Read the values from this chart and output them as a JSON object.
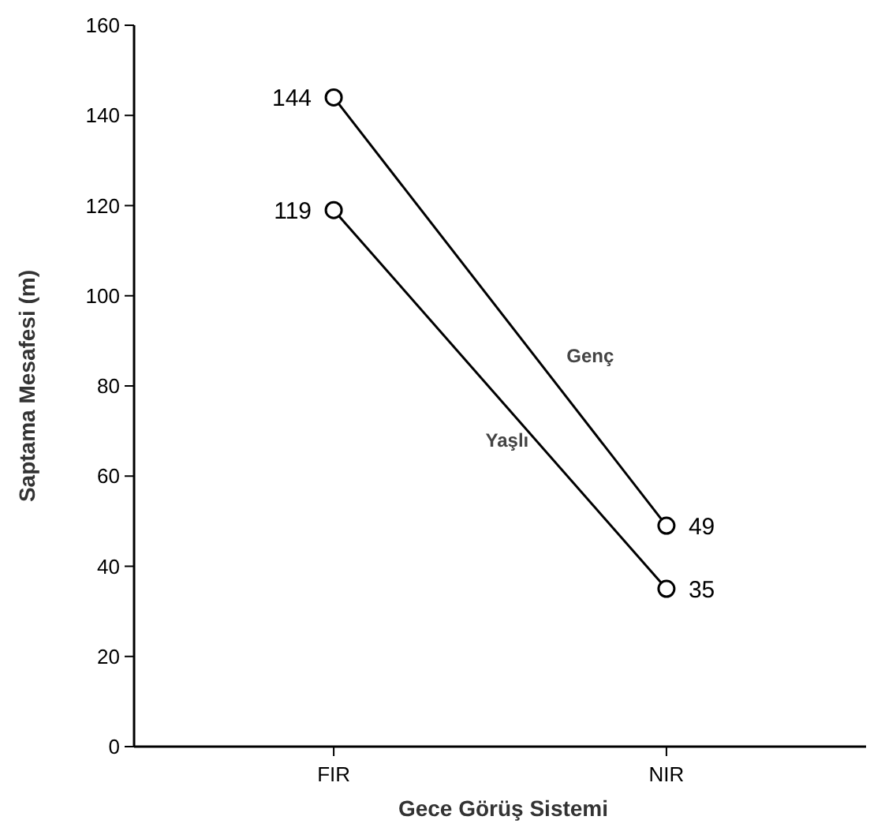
{
  "chart_data": {
    "type": "line",
    "xlabel": "Gece Görüş Sistemi",
    "ylabel": "Saptama Mesafesi (m)",
    "categories": [
      "FIR",
      "NIR"
    ],
    "series": [
      {
        "name": "Genç",
        "color": "#000000",
        "values": [
          144,
          49
        ]
      },
      {
        "name": "Yaşlı",
        "color": "#000000",
        "values": [
          119,
          35
        ]
      }
    ],
    "ylim": [
      0,
      160
    ],
    "yticks": [
      0,
      20,
      40,
      60,
      80,
      100,
      120,
      140,
      160
    ],
    "marker": "circle",
    "line_style": "solid",
    "data_labels": true,
    "grid": false
  }
}
